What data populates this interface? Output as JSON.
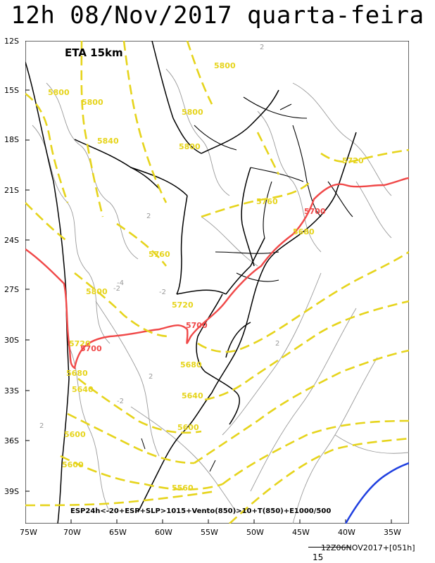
{
  "title": "12h 08/Nov/2017 quarta-feira",
  "model": "ETA 15km",
  "product": "ESP24h<-20+ESP+SLP>1015+Vento(850)>10+T(850)+E1000/500",
  "run": "12Z06NOV2017+[051h]",
  "vector_scale": "15",
  "lat_labels": [
    "12S",
    "15S",
    "18S",
    "21S",
    "24S",
    "27S",
    "30S",
    "33S",
    "36S",
    "39S"
  ],
  "lon_labels": [
    "75W",
    "70W",
    "65W",
    "60W",
    "55W",
    "50W",
    "45W",
    "40W",
    "35W"
  ],
  "thickness_labels": [
    {
      "id": "5800-a",
      "text": "5800"
    },
    {
      "id": "5800-b",
      "text": "5800"
    },
    {
      "id": "5800-c",
      "text": "5800"
    },
    {
      "id": "5800-d",
      "text": "5800"
    },
    {
      "id": "5800-e",
      "text": "5800"
    },
    {
      "id": "5800-f",
      "text": "5800"
    },
    {
      "id": "5840",
      "text": "5840"
    },
    {
      "id": "5720-a",
      "text": "5720"
    },
    {
      "id": "5760-a",
      "text": "5760"
    },
    {
      "id": "5680-a",
      "text": "5680"
    },
    {
      "id": "5760-b",
      "text": "5760"
    },
    {
      "id": "5800-g",
      "text": "5800"
    },
    {
      "id": "5720-b",
      "text": "5720"
    },
    {
      "id": "5720-c",
      "text": "5720"
    },
    {
      "id": "5680-b",
      "text": "5680"
    },
    {
      "id": "5640-a",
      "text": "5640"
    },
    {
      "id": "5680-c",
      "text": "5680"
    },
    {
      "id": "5640-b",
      "text": "5640"
    },
    {
      "id": "5600-a",
      "text": "5600"
    },
    {
      "id": "5600-b",
      "text": "5600"
    },
    {
      "id": "5600-c",
      "text": "5600"
    },
    {
      "id": "5560",
      "text": "5560"
    }
  ],
  "red_labels": [
    {
      "id": "5700-a",
      "text": "5700"
    },
    {
      "id": "5700-b",
      "text": "5700"
    },
    {
      "id": "5700-c",
      "text": "5700"
    }
  ],
  "colors": {
    "thickness": "#e6d41c",
    "line5700": "#f04848",
    "blue": "#2040e0",
    "border": "#000000",
    "pressure": "#9a9a9a"
  }
}
